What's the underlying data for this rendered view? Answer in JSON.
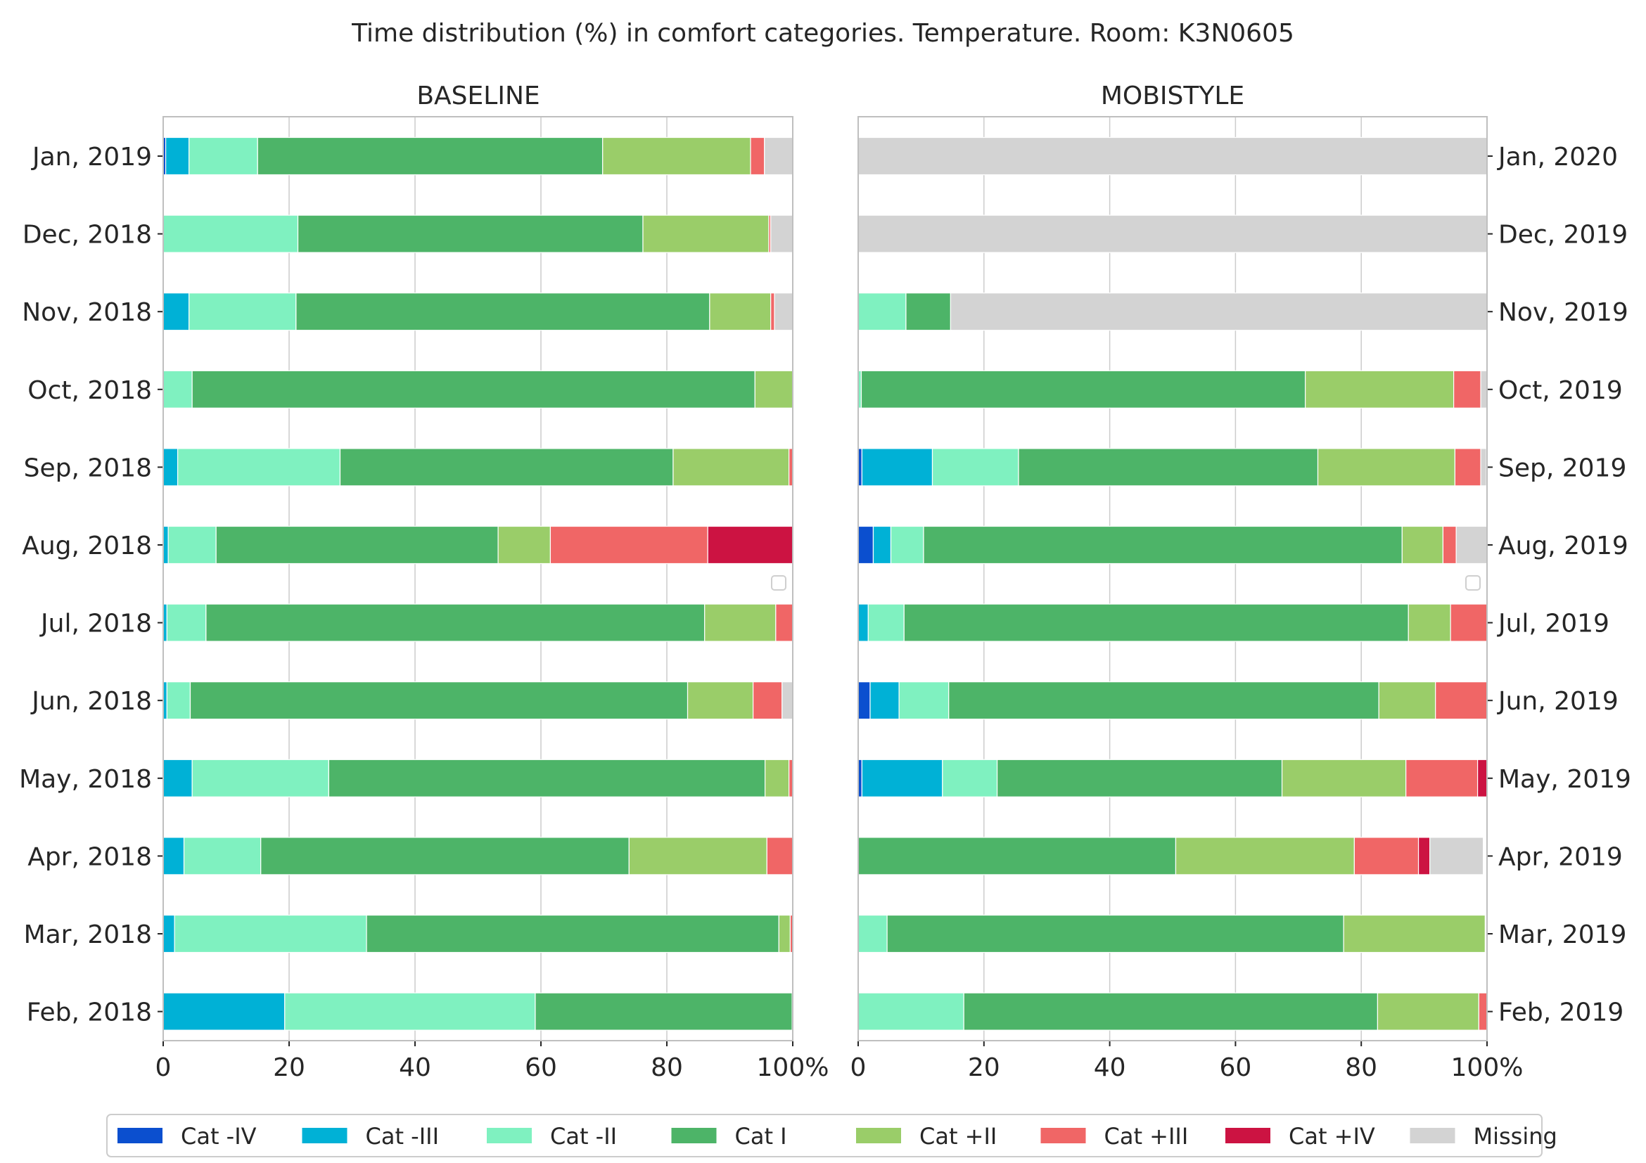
{
  "chart_data": {
    "type": "bar",
    "orientation": "horizontal-stacked",
    "title": "Time distribution (%) in comfort categories. Temperature. Room: K3N0605",
    "legend": {
      "placement": "bottom",
      "entries": [
        "Cat -IV",
        "Cat -III",
        "Cat -II",
        "Cat I",
        "Cat +II",
        "Cat +III",
        "Cat +IV",
        "Missing"
      ]
    },
    "colors": {
      "Cat -IV": "#0b4fcf",
      "Cat -III": "#00b1d6",
      "Cat -II": "#7ff1c0",
      "Cat I": "#4db468",
      "Cat +II": "#9acd69",
      "Cat +III": "#f06666",
      "Cat +IV": "#cc1342",
      "Missing": "#d3d3d3"
    },
    "xlim": [
      0,
      100
    ],
    "xticks": [
      "0",
      "20",
      "40",
      "60",
      "80",
      "100%"
    ],
    "grid": true,
    "panels": [
      {
        "title": "BASELINE",
        "ytick_side": "left",
        "categories": [
          "Feb, 2018",
          "Mar, 2018",
          "Apr, 2018",
          "May, 2018",
          "Jun, 2018",
          "Jul, 2018",
          "Aug, 2018",
          "Sep, 2018",
          "Oct, 2018",
          "Nov, 2018",
          "Dec, 2018",
          "Jan, 2019"
        ],
        "series": [
          {
            "name": "Cat -IV",
            "values": [
              0,
              0,
              0,
              0,
              0,
              0,
              0,
              0,
              0,
              0,
              0,
              0.4
            ]
          },
          {
            "name": "Cat -III",
            "values": [
              19.3,
              1.8,
              3.3,
              4.6,
              0.6,
              0.6,
              0.8,
              2.3,
              0,
              4.1,
              0,
              3.7
            ]
          },
          {
            "name": "Cat -II",
            "values": [
              39.8,
              30.5,
              12.2,
              21.7,
              3.7,
              6.2,
              7.6,
              25.8,
              4.6,
              17.0,
              21.4,
              10.9
            ]
          },
          {
            "name": "Cat I",
            "values": [
              40.8,
              65.5,
              58.5,
              69.3,
              79.0,
              79.2,
              44.8,
              52.9,
              89.4,
              65.7,
              54.8,
              54.8
            ]
          },
          {
            "name": "Cat +II",
            "values": [
              0.1,
              1.8,
              21.9,
              3.8,
              10.4,
              11.3,
              8.3,
              18.4,
              6.0,
              9.7,
              20.0,
              23.5
            ]
          },
          {
            "name": "Cat +III",
            "values": [
              0,
              0.4,
              4.1,
              0.6,
              4.6,
              2.7,
              25.0,
              0.6,
              0,
              0.6,
              0.3,
              2.2
            ]
          },
          {
            "name": "Cat +IV",
            "values": [
              0,
              0,
              0,
              0,
              0,
              0,
              13.5,
              0,
              0,
              0,
              0,
              0
            ]
          },
          {
            "name": "Missing",
            "values": [
              0,
              0,
              0,
              0,
              1.7,
              0,
              0,
              0,
              0,
              2.9,
              3.5,
              4.5
            ]
          }
        ]
      },
      {
        "title": "MOBISTYLE",
        "ytick_side": "right",
        "categories": [
          "Feb, 2019",
          "Mar, 2019",
          "Apr, 2019",
          "May, 2019",
          "Jun, 2019",
          "Jul, 2019",
          "Aug, 2019",
          "Sep, 2019",
          "Oct, 2019",
          "Nov, 2019",
          "Dec, 2019",
          "Jan, 2020"
        ],
        "series": [
          {
            "name": "Cat -IV",
            "values": [
              0,
              0,
              0,
              0.6,
              1.9,
              0,
              2.4,
              0.6,
              0,
              0,
              0,
              0
            ]
          },
          {
            "name": "Cat -III",
            "values": [
              0,
              0,
              0,
              12.8,
              4.6,
              1.6,
              2.8,
              11.2,
              0,
              0,
              0,
              0
            ]
          },
          {
            "name": "Cat -II",
            "values": [
              16.8,
              4.6,
              0,
              8.7,
              7.9,
              5.7,
              5.2,
              13.7,
              0.5,
              7.6,
              0,
              0
            ]
          },
          {
            "name": "Cat I",
            "values": [
              65.8,
              72.6,
              50.5,
              45.3,
              68.4,
              80.2,
              76.1,
              47.6,
              70.6,
              7.1,
              0,
              0
            ]
          },
          {
            "name": "Cat +II",
            "values": [
              16.1,
              22.5,
              28.4,
              19.7,
              9.0,
              6.7,
              6.5,
              21.8,
              23.6,
              0,
              0,
              0
            ]
          },
          {
            "name": "Cat +III",
            "values": [
              1.3,
              0,
              10.2,
              11.4,
              8.2,
              5.8,
              2.1,
              4.1,
              4.3,
              0,
              0,
              0
            ]
          },
          {
            "name": "Cat +IV",
            "values": [
              0,
              0,
              1.8,
              1.5,
              0,
              0,
              0,
              0,
              0,
              0,
              0,
              0
            ]
          },
          {
            "name": "Missing",
            "values": [
              0,
              0,
              8.5,
              0,
              0,
              0,
              4.9,
              0.9,
              1.0,
              85.3,
              100,
              100
            ]
          }
        ]
      }
    ]
  }
}
